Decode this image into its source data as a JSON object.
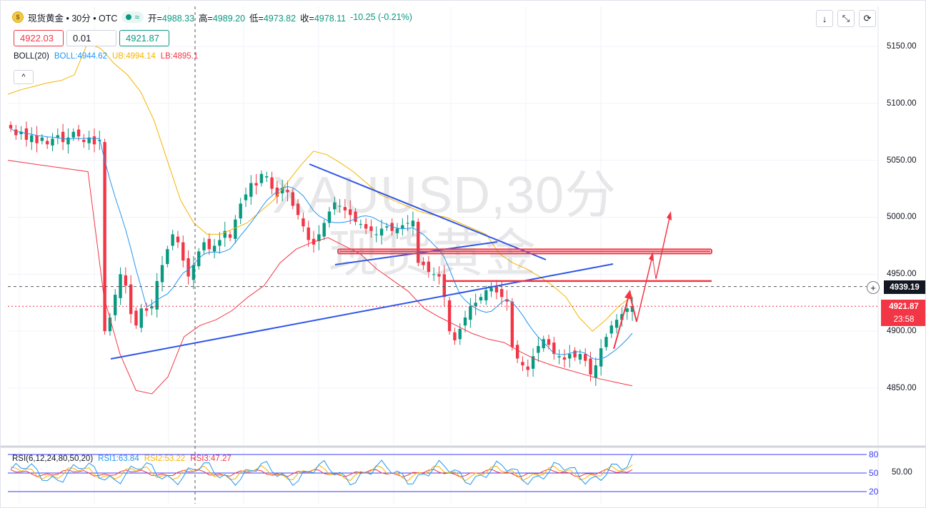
{
  "header": {
    "coin_glyph": "$",
    "symbol": "现货黄金 • 30分 • OTC",
    "wave_glyph": "≈",
    "open_label": "开=",
    "open_value": "4988.33",
    "high_label": "高=",
    "high_value": "4989.20",
    "low_label": "低=",
    "low_value": "4973.82",
    "close_label": "收=",
    "close_value": "4978.11",
    "change": "-10.25 (-0.21%)"
  },
  "trade": {
    "sell_price": "4922.03",
    "quantity": "0.01",
    "buy_price": "4921.87"
  },
  "boll_legend": {
    "name": "BOLL(20)",
    "boll": "BOLL:4944.62",
    "ub": "UB:4994.14",
    "lb": "LB:4895.1"
  },
  "toolbar": {
    "collapse_glyph": "^",
    "download_glyph": "↓",
    "fullscreen_glyph": "⤡",
    "settings_glyph": "⟳"
  },
  "watermark": {
    "line1": "XAUUSD,30分",
    "line2": "现货黄金"
  },
  "price_axis": {
    "ticks": [
      "5150.00",
      "5100.00",
      "5050.00",
      "5000.00",
      "4950.00",
      "4900.00",
      "4850.00"
    ],
    "crosshair_price": "4939.19",
    "last_price": "4921.87",
    "countdown": "23:58",
    "plus_glyph": "+"
  },
  "rsi_legend": {
    "name": "RSI(6,12,24,80,50,20)",
    "rsi1": "RSI1:63.84",
    "rsi2": "RSI2:53.22",
    "rsi3": "RSI3:47.27"
  },
  "rsi_axis": {
    "levels": [
      "80",
      "50",
      "20"
    ],
    "value_label": "50.00"
  },
  "colors": {
    "up": "#089981",
    "down": "#f23645",
    "boll_mid": "#2196f3",
    "boll_upper": "#f5b400",
    "boll_lower": "#f23645",
    "trendline": "#2f55e8",
    "annotation": "#f23645"
  },
  "chart_data": {
    "type": "candlestick",
    "title": "XAUUSD,30分",
    "ylim": [
      4800,
      5180
    ],
    "close_series": [
      5078,
      5072,
      5075,
      5068,
      5072,
      5065,
      5070,
      5064,
      5069,
      5072,
      5066,
      5070,
      5075,
      5071,
      5066,
      5070,
      5064,
      5068,
      4900,
      4912,
      4932,
      4950,
      4940,
      4915,
      4905,
      4920,
      4918,
      4922,
      4944,
      4958,
      4972,
      4985,
      4978,
      4962,
      4948,
      4958,
      4970,
      4978,
      4972,
      4975,
      4980,
      4988,
      4982,
      4998,
      5012,
      5020,
      5030,
      5028,
      5038,
      5036,
      5025,
      5018,
      5026,
      5022,
      5010,
      5002,
      4992,
      4980,
      4976,
      4985,
      4995,
      5005,
      5013,
      5010,
      5006,
      5002,
      4996,
      4994,
      4990,
      4988,
      4985,
      4990,
      4992,
      4988,
      4990,
      4993,
      4995,
      4997,
      4960,
      4958,
      4952,
      4950,
      4948,
      4930,
      4900,
      4892,
      4902,
      4912,
      4922,
      4925,
      4930,
      4936,
      4938,
      4934,
      4930,
      4926,
      4886,
      4876,
      4870,
      4866,
      4878,
      4887,
      4893,
      4888,
      4880,
      4878,
      4875,
      4880,
      4877,
      4880,
      4874,
      4862,
      4870,
      4885,
      4895,
      4905,
      4910,
      4915,
      4920,
      4922
    ],
    "boll_upper_sample": [
      5108,
      5112,
      5115,
      5118,
      5120,
      5125,
      5153,
      5148,
      5135,
      5125,
      5110,
      5085,
      5050,
      5015,
      4995,
      4985,
      4985,
      4990,
      4995,
      5005,
      5015,
      5030,
      5045,
      5058,
      5055,
      5048,
      5040,
      5030,
      5020,
      5015,
      5010,
      5005,
      5002,
      5000,
      4995,
      4990,
      4985,
      4968,
      4960,
      4955,
      4948,
      4940,
      4930,
      4912,
      4900,
      4910,
      4922,
      4931
    ],
    "boll_lower_sample": [
      5050,
      5048,
      5046,
      5044,
      5042,
      5040,
      4930,
      4880,
      4848,
      4845,
      4860,
      4895,
      4905,
      4910,
      4918,
      4930,
      4940,
      4960,
      4972,
      4978,
      4982,
      4975,
      4968,
      4955,
      4945,
      4935,
      4920,
      4912,
      4905,
      4898,
      4893,
      4890,
      4882,
      4875,
      4870,
      4866,
      4862,
      4858,
      4855,
      4852
    ],
    "horizontal_levels": [
      4970,
      4944
    ],
    "crosshair_price": 4939.19,
    "last_price": 4921.87,
    "rsi": {
      "rsi1": 63.84,
      "rsi2": 53.22,
      "rsi3": 47.27,
      "levels": [
        80,
        50,
        20
      ]
    }
  }
}
